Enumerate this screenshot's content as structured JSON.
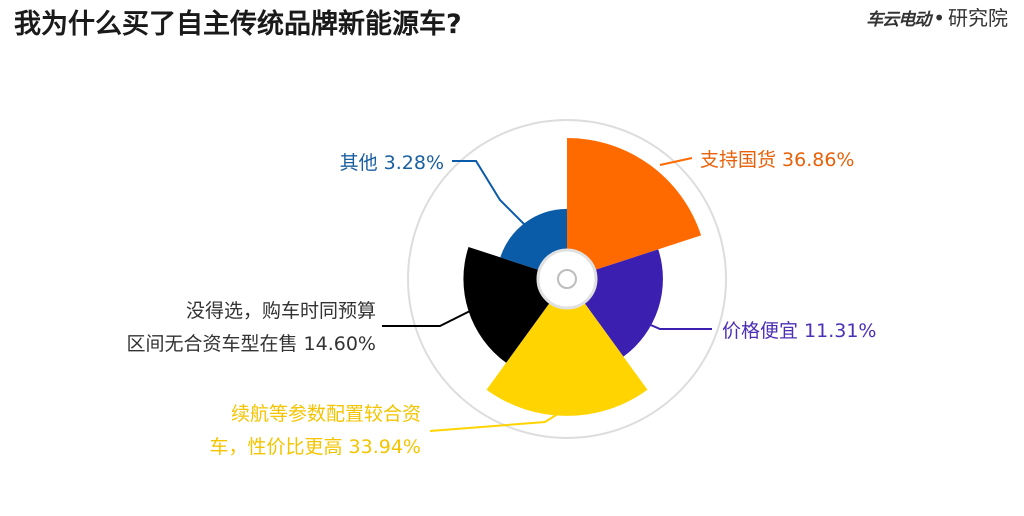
{
  "title": "我为什么买了自主传统品牌新能源车?",
  "logo": {
    "brand": "车云电动",
    "suffix": "研究院"
  },
  "chart_data": {
    "type": "pie",
    "subtype": "rose",
    "categories": [
      "支持国货",
      "价格便宜",
      "续航等参数配置较合资车，性价比更高",
      "没得选，购车时同预算区间无合资车型在售",
      "其他"
    ],
    "values": [
      36.86,
      11.31,
      33.94,
      14.6,
      3.28
    ],
    "colors": [
      "#FF6A00",
      "#3A1FB0",
      "#FFD400",
      "#000000",
      "#0A5BA8"
    ],
    "label_colors": [
      "#E8610A",
      "#4B2FB5",
      "#F5C400",
      "#333333",
      "#1A5FA0"
    ],
    "labels": [
      [
        "支持国货 36.86%"
      ],
      [
        "价格便宜 11.31%"
      ],
      [
        "续航等参数配置较合资",
        "车，性价比更高 33.94%"
      ],
      [
        "没得选，购车时同预算",
        "区间无合资车型在售 14.60%"
      ],
      [
        "其他 3.28%"
      ]
    ]
  }
}
